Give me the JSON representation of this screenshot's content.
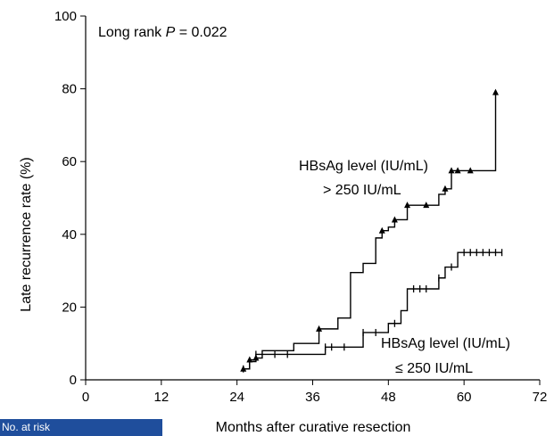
{
  "chart_data": {
    "type": "line",
    "step": true,
    "xlabel": "Months after curative resection",
    "ylabel": "Late recurrence rate  (%)",
    "xlim": [
      0,
      72
    ],
    "ylim": [
      0,
      100
    ],
    "xticks": [
      0,
      12,
      24,
      36,
      48,
      60,
      72
    ],
    "yticks": [
      0,
      20,
      40,
      60,
      80,
      100
    ],
    "grid": false,
    "annotation": {
      "prefix": "Long rank ",
      "p_symbol": "P",
      "suffix": " = 0.022"
    },
    "series": [
      {
        "name_line1": "HBsAg level (IU/mL)",
        "name_line2": "> 250  IU/mL",
        "marker": "triangle",
        "x": [
          25,
          26,
          27,
          28,
          33,
          37,
          40,
          42,
          44,
          46,
          47,
          48,
          49,
          51,
          54,
          56,
          57,
          58,
          59,
          61,
          63,
          65
        ],
        "y": [
          3,
          5.5,
          6,
          8,
          10,
          14,
          17,
          29.5,
          32,
          39,
          41,
          42,
          44,
          48,
          48,
          51,
          52.5,
          57.5,
          57.5,
          57.5,
          57.5,
          79
        ],
        "markers_x": [
          25,
          26,
          27,
          37,
          47,
          49,
          51,
          54,
          57,
          58,
          59,
          61,
          65
        ]
      },
      {
        "name_line1": "HBsAg level (IU/mL)",
        "name_line2": "≤ 250 IU/mL",
        "marker": "tick",
        "x": [
          25,
          26,
          27,
          29,
          37,
          38,
          42,
          44,
          45,
          48,
          50,
          51,
          55,
          56,
          57,
          59,
          66
        ],
        "y": [
          3,
          5,
          7,
          7,
          7,
          9,
          9,
          13,
          13,
          15.5,
          19,
          25,
          25,
          28,
          31,
          35,
          35
        ],
        "markers_x": [
          25,
          26,
          27,
          30,
          32,
          38,
          39,
          41,
          44,
          46,
          49,
          52,
          53,
          54,
          56,
          58,
          60,
          61,
          62,
          63,
          64,
          65,
          66
        ]
      }
    ]
  },
  "risk_table": {
    "label": "No. at risk"
  }
}
